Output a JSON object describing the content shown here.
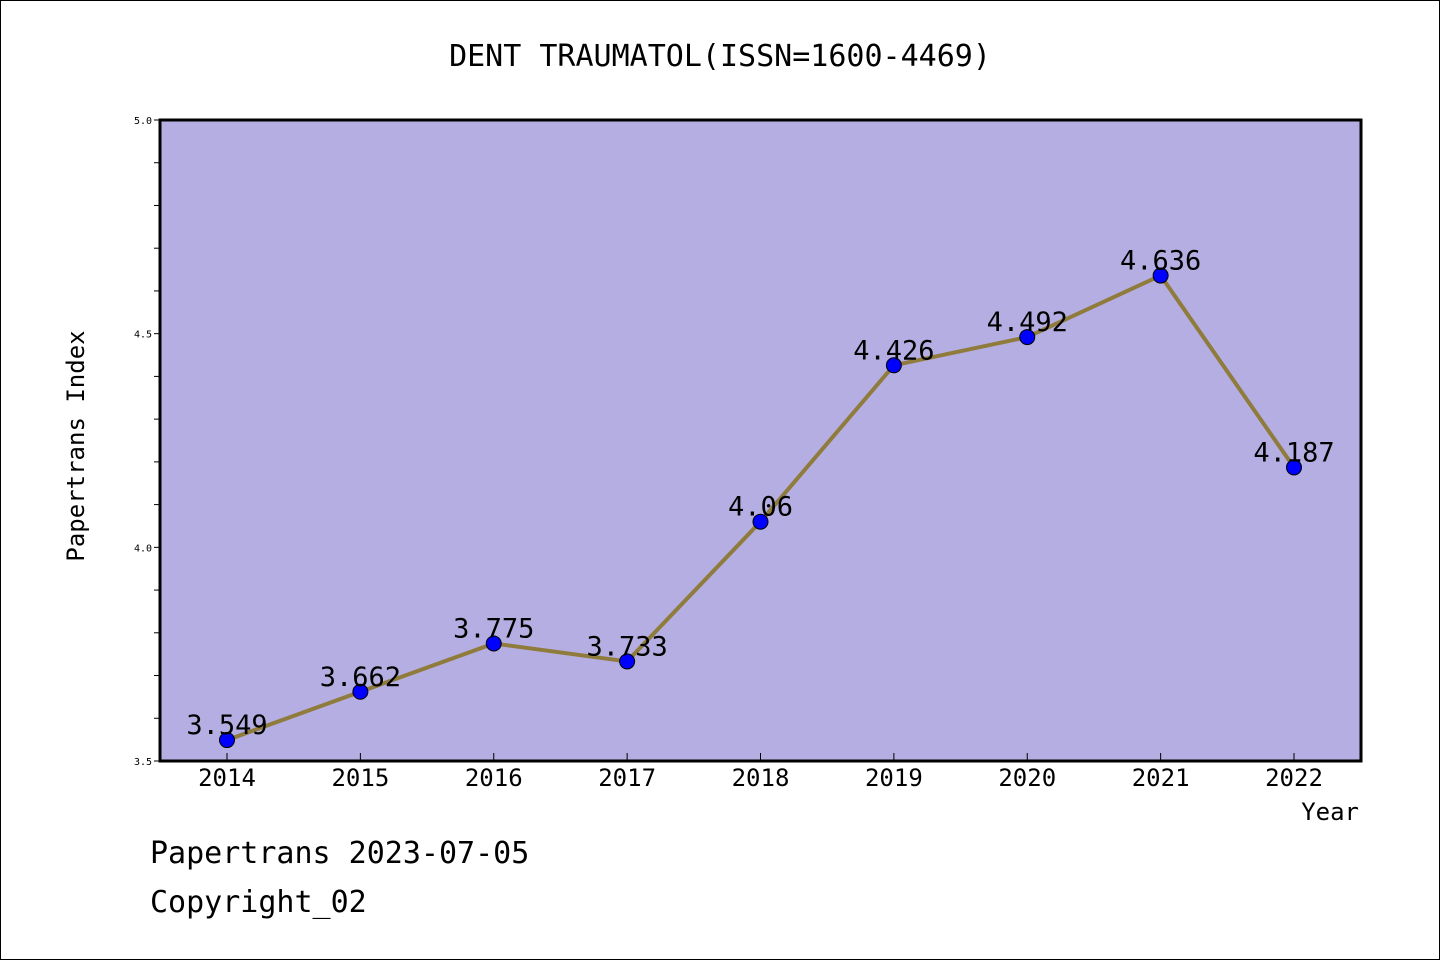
{
  "chart_data": {
    "type": "line",
    "title": "DENT TRAUMATOL(ISSN=1600-4469)",
    "xlabel": "Year",
    "ylabel": "Papertrans Index",
    "categories": [
      "2014",
      "2015",
      "2016",
      "2017",
      "2018",
      "2019",
      "2020",
      "2021",
      "2022"
    ],
    "series": [
      {
        "values": [
          3.549,
          3.662,
          3.775,
          3.733,
          4.06,
          4.426,
          4.492,
          4.636,
          4.187
        ],
        "labels": [
          "3.549",
          "3.662",
          "3.775",
          "3.733",
          "4.06",
          "4.426",
          "4.492",
          "4.636",
          "4.187"
        ]
      }
    ],
    "ylim": [
      3.5,
      5.0
    ],
    "yticks": [
      "3.5",
      "4.0",
      "4.5",
      "5.0"
    ],
    "grid": false,
    "colors": {
      "plot_background": "#b5aee2",
      "line": "#8f7c3c",
      "marker": "#0000ff"
    }
  },
  "footer": {
    "date_line": "Papertrans 2023-07-05",
    "copyright_line": "Copyright_02"
  }
}
